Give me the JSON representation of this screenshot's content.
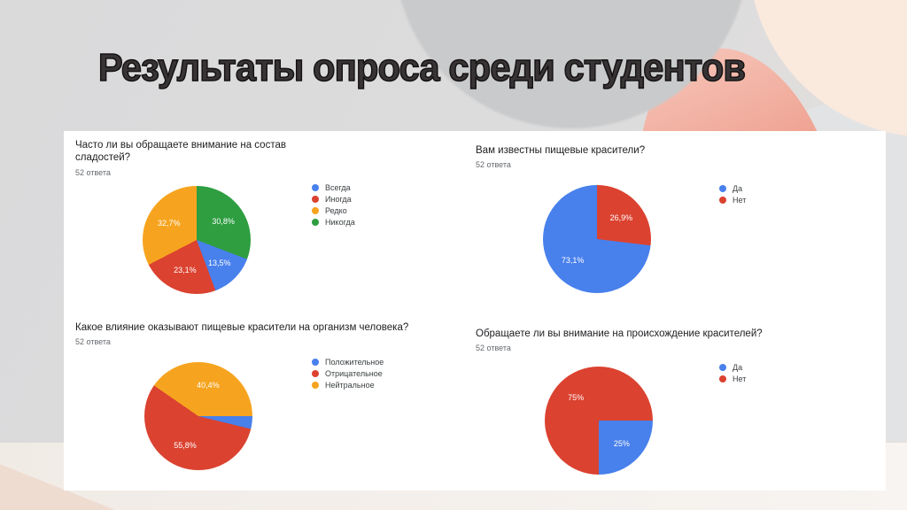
{
  "slide": {
    "title": "Результаты опроса среди студентов"
  },
  "palette": {
    "blue": "#4880EC",
    "red": "#DB4230",
    "orange": "#F6A41F",
    "green": "#2E9E41"
  },
  "chart_data": [
    {
      "type": "pie",
      "title": "Часто ли вы обращаете внимание на состав сладостей?",
      "responses": "52 ответа",
      "legend_position": "right",
      "start_angle_deg": 0,
      "legend": [
        {
          "label": "Всегда",
          "color": "#4880EC"
        },
        {
          "label": "Иногда",
          "color": "#DB4230"
        },
        {
          "label": "Редко",
          "color": "#F6A41F"
        },
        {
          "label": "Никогда",
          "color": "#2E9E41"
        }
      ],
      "slices_clockwise_from_top": [
        {
          "category": "Никогда",
          "value_pct": 30.8,
          "label": "30,8%",
          "color": "#2E9E41"
        },
        {
          "category": "Всегда",
          "value_pct": 13.5,
          "label": "13,5%",
          "color": "#4880EC"
        },
        {
          "category": "Иногда",
          "value_pct": 23.1,
          "label": "23,1%",
          "color": "#DB4230"
        },
        {
          "category": "Редко",
          "value_pct": 32.7,
          "label": "32,7%",
          "color": "#F6A41F"
        }
      ]
    },
    {
      "type": "pie",
      "title": "Вам известны пищевые красители?",
      "responses": "52 ответа",
      "legend_position": "right",
      "start_angle_deg": 0,
      "legend": [
        {
          "label": "Да",
          "color": "#4880EC"
        },
        {
          "label": "Нет",
          "color": "#DB4230"
        }
      ],
      "slices_clockwise_from_top": [
        {
          "category": "Нет",
          "value_pct": 26.9,
          "label": "26,9%",
          "color": "#DB4230"
        },
        {
          "category": "Да",
          "value_pct": 73.1,
          "label": "73,1%",
          "color": "#4880EC"
        }
      ]
    },
    {
      "type": "pie",
      "title": "Какое влияние оказывают пищевые красители на организм человека?",
      "responses": "52 ответа",
      "legend_position": "right",
      "start_angle_deg": -55.4,
      "legend": [
        {
          "label": "Положительное",
          "color": "#4880EC"
        },
        {
          "label": "Отрицательное",
          "color": "#DB4230"
        },
        {
          "label": "Нейтральное",
          "color": "#F6A41F"
        }
      ],
      "slices_clockwise_from_top": [
        {
          "category": "Нейтральное",
          "value_pct": 40.4,
          "label": "40,4%",
          "color": "#F6A41F"
        },
        {
          "category": "Положительное",
          "value_pct": 3.8,
          "label": "",
          "color": "#4880EC"
        },
        {
          "category": "Отрицательное",
          "value_pct": 55.8,
          "label": "55,8%",
          "color": "#DB4230"
        }
      ]
    },
    {
      "type": "pie",
      "title": "Обращаете ли вы внимание на происхождение красителей?",
      "responses": "52 ответа",
      "legend_position": "right",
      "start_angle_deg": 90,
      "legend": [
        {
          "label": "Да",
          "color": "#4880EC"
        },
        {
          "label": "Нет",
          "color": "#DB4230"
        }
      ],
      "slices_clockwise_from_top": [
        {
          "category": "Да",
          "value_pct": 25,
          "label": "25%",
          "color": "#4880EC"
        },
        {
          "category": "Нет",
          "value_pct": 75,
          "label": "75%",
          "color": "#DB4230"
        }
      ]
    }
  ]
}
